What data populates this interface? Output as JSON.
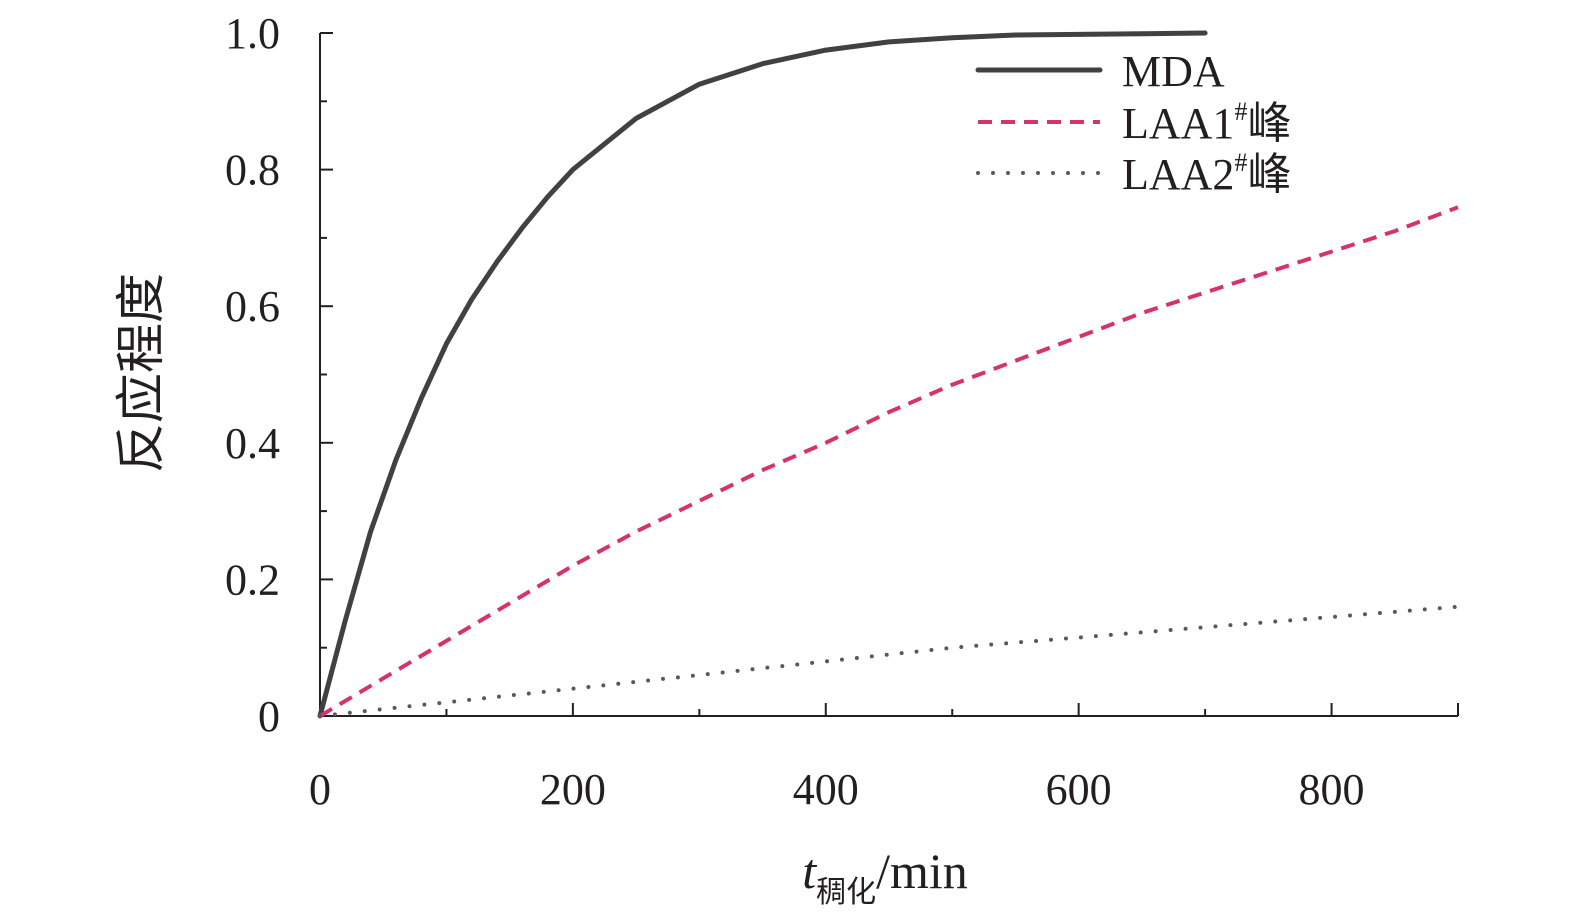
{
  "chart_data": {
    "type": "line",
    "title": "",
    "xlabel": {
      "symbol": "t",
      "subscript": "稠化",
      "unit": "/min"
    },
    "ylabel": "反应程度",
    "xlim": [
      0,
      900
    ],
    "ylim": [
      0,
      1.0
    ],
    "x_ticks": [
      0,
      200,
      400,
      600,
      800
    ],
    "x_tick_labels": [
      "0",
      "200",
      "400",
      "600",
      "800"
    ],
    "y_ticks": [
      0,
      0.2,
      0.4,
      0.6,
      0.8,
      1.0
    ],
    "y_tick_labels": [
      "0",
      "0.2",
      "0.4",
      "0.6",
      "0.8",
      "1.0"
    ],
    "grid": false,
    "legend_position": "top-right",
    "series": [
      {
        "name": "MDA",
        "name_base": "MDA",
        "name_sup": "",
        "name_suffix": "",
        "style": "solid",
        "color": "#414042",
        "x": [
          0,
          10,
          20,
          40,
          60,
          80,
          100,
          120,
          140,
          160,
          180,
          200,
          250,
          300,
          350,
          400,
          450,
          500,
          550,
          600,
          650,
          700
        ],
        "y": [
          0,
          0.07,
          0.14,
          0.27,
          0.375,
          0.465,
          0.545,
          0.61,
          0.665,
          0.715,
          0.76,
          0.8,
          0.875,
          0.925,
          0.955,
          0.975,
          0.987,
          0.993,
          0.997,
          0.998,
          0.999,
          1.0
        ]
      },
      {
        "name": "LAA1#峰",
        "name_base": "LAA1",
        "name_sup": "#",
        "name_suffix": "峰",
        "style": "dashed",
        "color": "#d6336c",
        "x": [
          0,
          50,
          100,
          150,
          200,
          250,
          300,
          350,
          400,
          450,
          500,
          550,
          600,
          650,
          700,
          750,
          800,
          850,
          900
        ],
        "y": [
          0,
          0.055,
          0.11,
          0.165,
          0.22,
          0.27,
          0.315,
          0.36,
          0.4,
          0.445,
          0.485,
          0.52,
          0.555,
          0.59,
          0.62,
          0.65,
          0.68,
          0.71,
          0.745
        ]
      },
      {
        "name": "LAA2#峰",
        "name_base": "LAA2",
        "name_sup": "#",
        "name_suffix": "峰",
        "style": "dotted",
        "color": "#58595b",
        "x": [
          0,
          100,
          200,
          300,
          400,
          500,
          600,
          700,
          800,
          900
        ],
        "y": [
          0,
          0.02,
          0.04,
          0.06,
          0.08,
          0.1,
          0.115,
          0.13,
          0.145,
          0.16
        ]
      }
    ]
  }
}
